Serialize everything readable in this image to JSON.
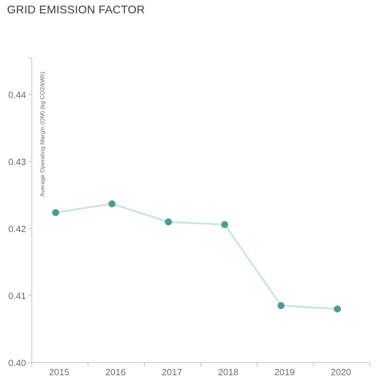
{
  "title": "GRID EMISSION FACTOR",
  "chart_data": {
    "type": "line",
    "title": "GRID EMISSION FACTOR",
    "xlabel": "",
    "ylabel": "Average Operating Margin (OM) (kg CO2/kWh)",
    "categories": [
      "2015",
      "2016",
      "2017",
      "2018",
      "2019",
      "2020"
    ],
    "series": [
      {
        "values": [
          0.4224,
          0.4237,
          0.421,
          0.4206,
          0.4085,
          0.408
        ]
      }
    ],
    "ylim": [
      0.4,
      0.4455
    ],
    "yticks": [
      0.4,
      0.41,
      0.42,
      0.43,
      0.44
    ],
    "ytick_labels": [
      "0.40",
      "0.41",
      "0.42",
      "0.43",
      "0.44"
    ],
    "grid": false,
    "legend": "none",
    "colors": {
      "line": "#c9e3e0",
      "marker": "#4d9b93",
      "axis": "#bdbdbd"
    }
  }
}
